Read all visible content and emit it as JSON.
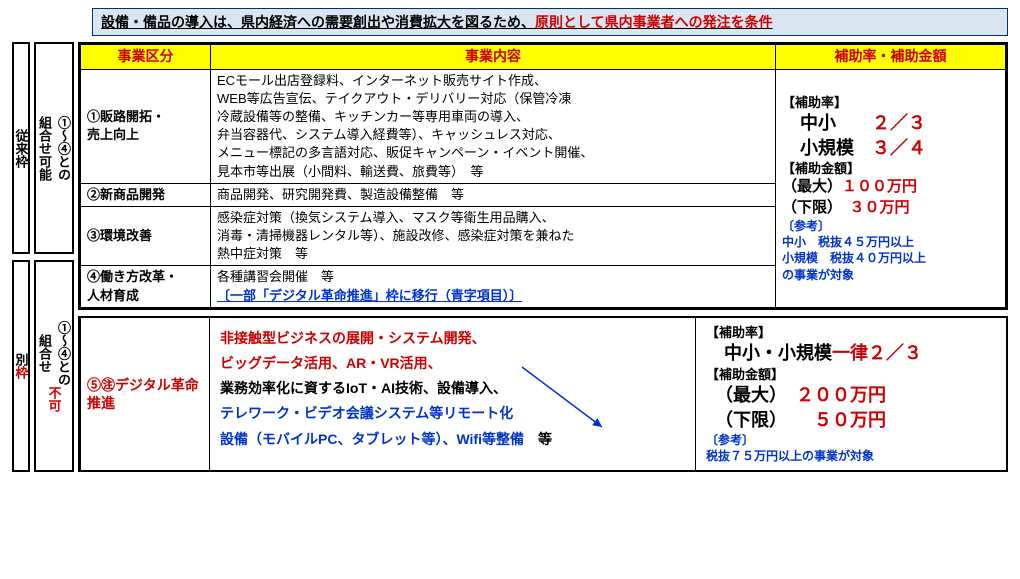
{
  "banner": {
    "prefix": "設備・備品の導入は、県内経済への需要創出や消費拡大を図るため、",
    "redPart": "原則として県内事業者への発注を条件"
  },
  "sidebar1": "従来枠",
  "sidebar2": "①〜④との\n組合せ可能",
  "headers": {
    "cat": "事業区分",
    "detail": "事業内容",
    "amt": "補助率・補助金額"
  },
  "rows": [
    {
      "cat": "①販路開拓・\n売上向上",
      "detail": "ECモール出店登録料、インターネット販売サイト作成、\nWEB等広告宣伝、テイクアウト・デリバリー対応（保管冷凍\n冷蔵設備等の整備、キッチンカー等専用車両の導入、\n弁当容器代、システム導入経費等）、キャッシュレス対応、\nメニュー標記の多言語対応、販促キャンペーン・イベント開催、\n見本市等出展（小間料、輸送費、旅費等）　等"
    },
    {
      "cat": "②新商品開発",
      "detail": "商品開発、研究開発費、製造設備整備　等"
    },
    {
      "cat": "③環境改善",
      "detail": "感染症対策（換気システム導入、マスク等衛生用品購入、\n消毒・清掃機器レンタル等）、施設改修、感染症対策を兼ねた\n熱中症対策　等"
    },
    {
      "cat": "④働き方改革・\n人材育成",
      "detail": "各種講習会開催　等",
      "blueNote": "〔一部「デジタル革命推進」枠に移行（青字項目）〕"
    }
  ],
  "rate1": {
    "title": "【補助率】",
    "line1a": "中小",
    "line1b": "２／３",
    "line2a": "小規模",
    "line2b": "３／４",
    "amtTitle": "【補助金額】",
    "maxLabel": "（最大）",
    "maxVal": "１００万円",
    "minLabel": "（下限）",
    "minVal": "３０万円",
    "refTitle": "〔参考〕",
    "ref1": "中小　税抜４５万円以上",
    "ref2": "小規模　税抜４０万円以上",
    "ref3": "の事業が対象"
  },
  "sidebar3": "別枠",
  "sidebar4": "①〜④との\n組合せ不可",
  "row5cat": "⑤㊟デジタル革命\n推進",
  "row5detail": {
    "red1": "非接触型ビジネスの展開・システム開発、",
    "red2": "ビッグデータ活用、AR・VR活用、",
    "black": "業務効率化に資するIoT・AI技術、設備導入、",
    "blue1": "テレワーク・ビデオ会議システム等リモート化",
    "blue2a": "設備（モバイルPC、タブレット等）、Wifi等整備",
    "blue2end": "　等"
  },
  "rate2": {
    "title": "【補助率】",
    "line1a": "中小・小規模",
    "line1b": "一律２／３",
    "amtTitle": "【補助金額】",
    "maxLabel": "（最大）",
    "maxVal": "２００万円",
    "minLabel": "（下限）",
    "minVal": "５０万円",
    "refTitle": "〔参考〕",
    "ref": "税抜７５万円以上の事業が対象"
  }
}
